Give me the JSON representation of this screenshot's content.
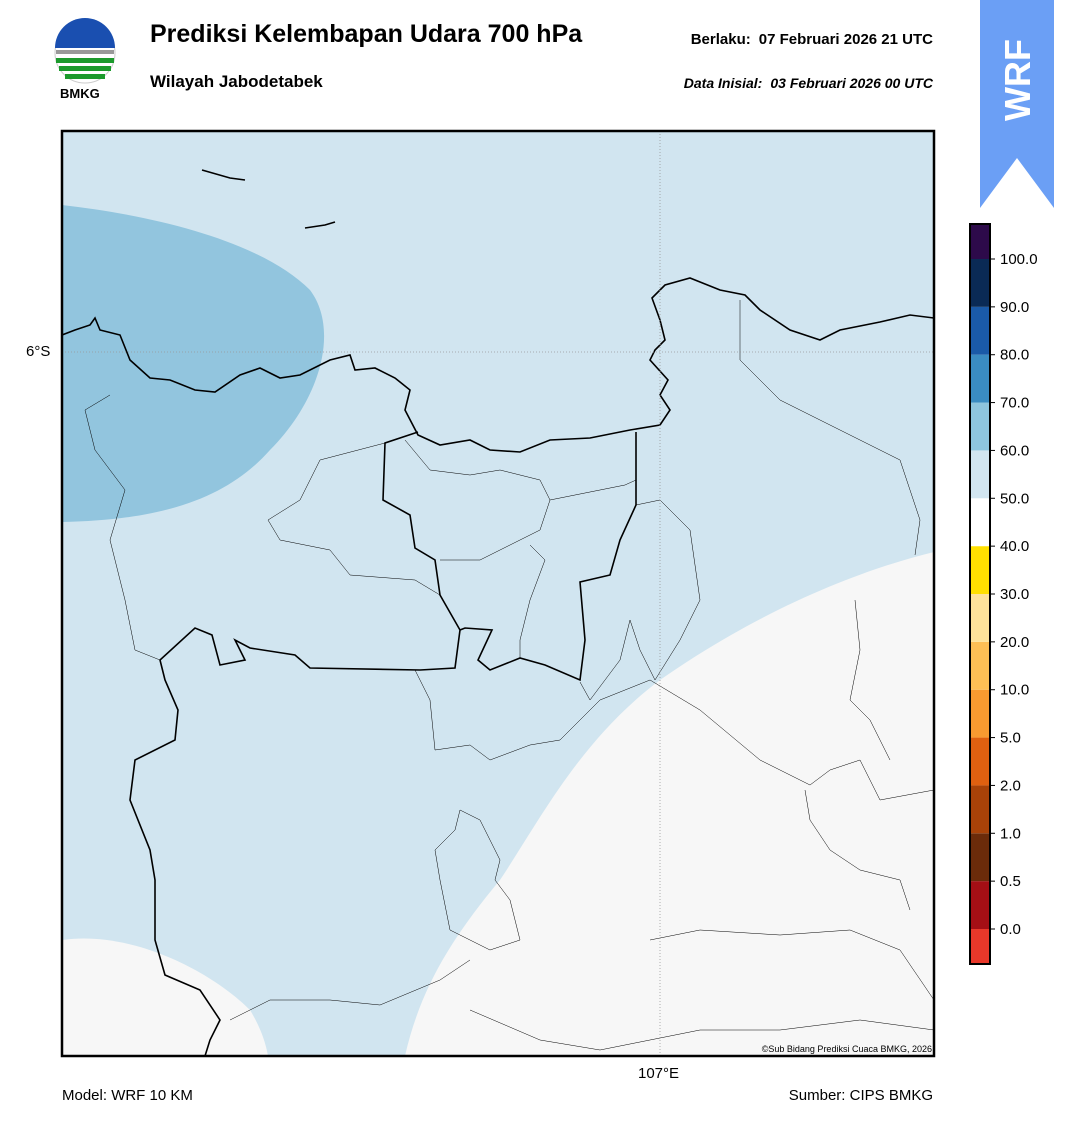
{
  "header": {
    "title": "Prediksi Kelembapan Udara 700 hPa",
    "subtitle": "Wilayah Jabodetabek",
    "valid_label": "Berlaku:",
    "valid": "07 Februari 2026 21 UTC",
    "init_label": "Data Inisial:",
    "init": "03 Februari 2026 00 UTC"
  },
  "logo": {
    "text": "BMKG"
  },
  "badge": {
    "text": "WRF"
  },
  "map": {
    "lat_label": "6°S",
    "lon_label": "107°E",
    "credit": "©Sub Bidang Prediksi Cuaca BMKG, 2026"
  },
  "colorbar": {
    "labels": [
      "0.0",
      "0.5",
      "1.0",
      "2.0",
      "5.0",
      "10.0",
      "20.0",
      "30.0",
      "40.0",
      "50.0",
      "60.0",
      "70.0",
      "80.0",
      "90.0",
      "100.0"
    ],
    "colors": [
      "#e8382a",
      "#a50f15",
      "#6b2b0a",
      "#a84208",
      "#e06010",
      "#f99a30",
      "#fdbf55",
      "#fee39a",
      "#ffe000",
      "#ffffff",
      "#d1e5f0",
      "#8ec5de",
      "#3a8cc2",
      "#1a5aa8",
      "#0a2a55",
      "#2d0a4a"
    ]
  },
  "footer": {
    "model": "Model: WRF 10 KM",
    "source": "Sumber: CIPS BMKG"
  }
}
